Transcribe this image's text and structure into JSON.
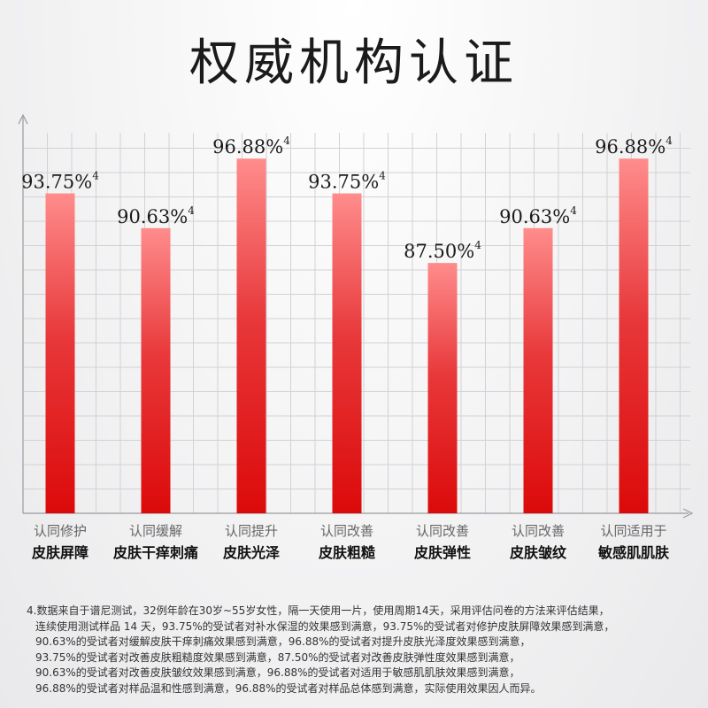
{
  "title": "权威机构认证",
  "chart_data": {
    "type": "bar",
    "categories": [
      {
        "line1": "认同修护",
        "line2": "皮肤屏障"
      },
      {
        "line1": "认同缓解",
        "line2": "皮肤干痒刺痛"
      },
      {
        "line1": "认同提升",
        "line2": "皮肤光泽"
      },
      {
        "line1": "认同改善",
        "line2": "皮肤粗糙"
      },
      {
        "line1": "认同改善",
        "line2": "皮肤弹性"
      },
      {
        "line1": "认同改善",
        "line2": "皮肤皱纹"
      },
      {
        "line1": "认同适用于",
        "line2": "敏感肌肌肤"
      }
    ],
    "values": [
      93.75,
      90.63,
      96.88,
      93.75,
      87.5,
      90.63,
      96.88
    ],
    "value_labels": [
      "93.75%",
      "90.63%",
      "96.88%",
      "93.75%",
      "87.50%",
      "90.63%",
      "96.88%"
    ],
    "footnote_marker": "4",
    "ylim": [
      65,
      100
    ],
    "grid": true,
    "bar_color_top": "#ff8c8c",
    "bar_color_bottom": "#dc0a0a"
  },
  "footnote": [
    "4.数据来自于谱尼测试，32例年龄在30岁~55岁女性，隔一天使用一片，使用周期14天，采用评估问卷的方法来评估结果，",
    "连续使用测试样品 14 天，93.75%的受试者对补水保湿的效果感到满意，93.75%的受试者对修护皮肤屏障效果感到满意，",
    "90.63%的受试者对缓解皮肤干痒刺痛效果感到满意，96.88%的受试者对提升皮肤光泽度效果感到满意，",
    "93.75%的受试者对改善皮肤粗糙度效果感到满意，87.50%的受试者对改善皮肤弹性度效果感到满意，",
    "90.63%的受试者对改善皮肤皱纹效果感到满意，96.88%的受试者对适用于敏感肌肌肤效果感到满意，",
    "96.88%的受试者对样品温和性感到满意，96.88%的受试者对样品总体感到满意，实际使用效果因人而异。"
  ]
}
